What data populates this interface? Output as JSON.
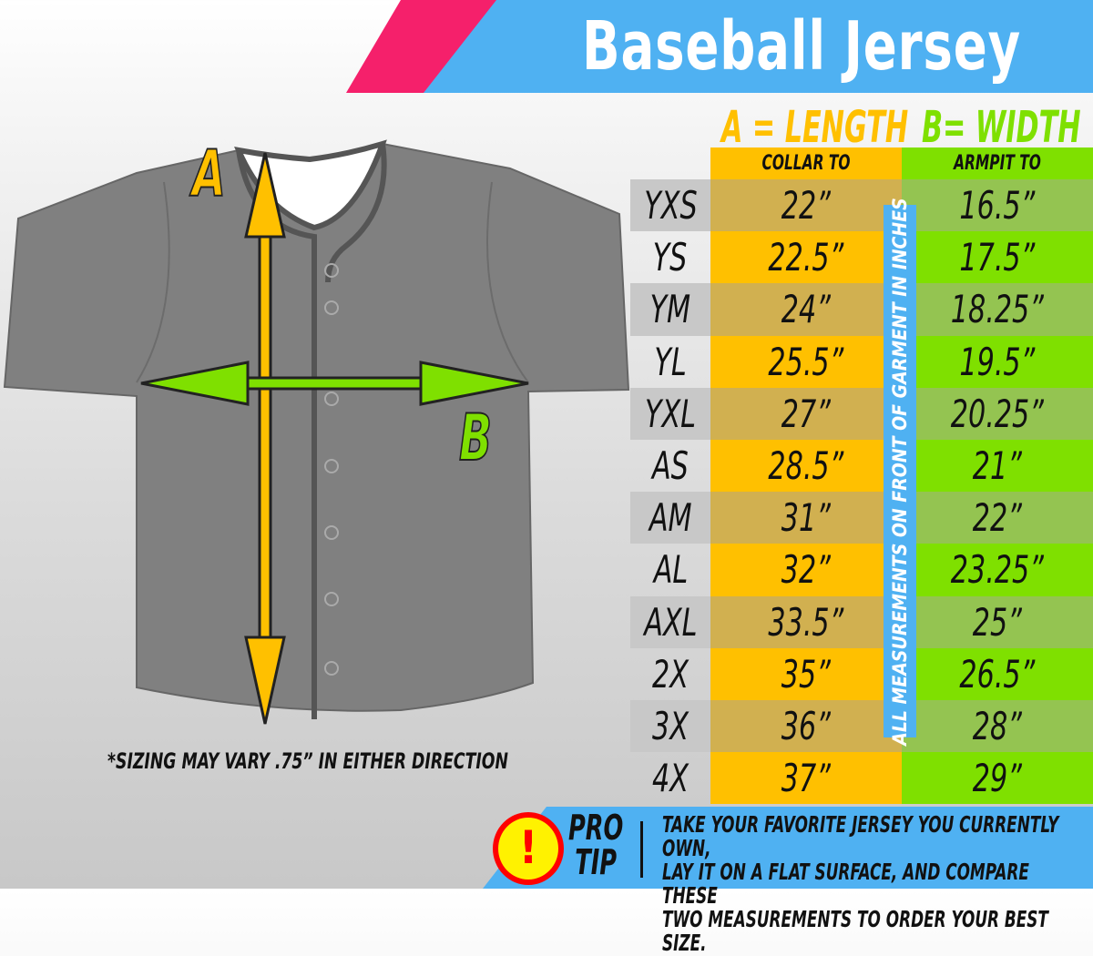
{
  "title": "Baseball Jersey",
  "header": {
    "length_title": "A = LENGTH",
    "width_title": "B= WIDTH",
    "length_sub": "COLLAR TO BOTTOM",
    "width_sub": "ARMPIT TO ARMPIT"
  },
  "diagram": {
    "label_a": "A",
    "label_b": "B"
  },
  "rows": [
    {
      "size": "YXS",
      "length": "22”",
      "width": "16.5”"
    },
    {
      "size": "YS",
      "length": "22.5”",
      "width": "17.5”"
    },
    {
      "size": "YM",
      "length": "24”",
      "width": "18.25”"
    },
    {
      "size": "YL",
      "length": "25.5”",
      "width": "19.5”"
    },
    {
      "size": "YXL",
      "length": "27”",
      "width": "20.25”"
    },
    {
      "size": "AS",
      "length": "28.5”",
      "width": "21”"
    },
    {
      "size": "AM",
      "length": "31”",
      "width": "22”"
    },
    {
      "size": "AL",
      "length": "32”",
      "width": "23.25”"
    },
    {
      "size": "AXL",
      "length": "33.5”",
      "width": "25”"
    },
    {
      "size": "2X",
      "length": "35”",
      "width": "26.5”"
    },
    {
      "size": "3X",
      "length": "36”",
      "width": "28”"
    },
    {
      "size": "4X",
      "length": "37”",
      "width": "29”"
    }
  ],
  "vertical_note": "ALL MEASUREMENTS ON FRONT OF GARMENT IN INCHES",
  "sizing_note": "*SIZING MAY VARY .75” IN EITHER DIRECTION",
  "pro_tip": {
    "icon": "exclamation-icon",
    "label_1": "PRO",
    "label_2": "TIP",
    "line_1": "TAKE YOUR FAVORITE JERSEY YOU CURRENTLY OWN,",
    "line_2": "LAY IT ON A FLAT SURFACE, AND COMPARE THESE",
    "line_3": "TWO MEASUREMENTS TO ORDER YOUR BEST SIZE."
  },
  "colors": {
    "length": "#ffc000",
    "width": "#7fe000",
    "banner": "#4fb1f2",
    "accent": "#f5206b"
  }
}
